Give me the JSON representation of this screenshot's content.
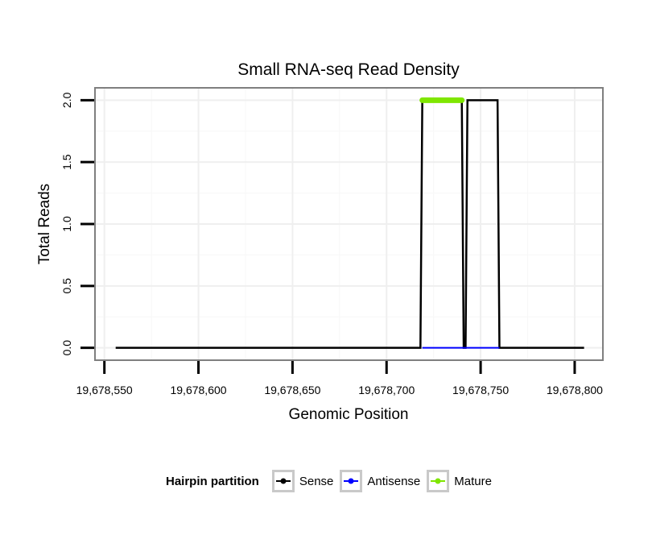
{
  "chart_data": {
    "type": "line",
    "title": "Small RNA-seq Read Density",
    "xlabel": "Genomic Position",
    "ylabel": "Total Reads",
    "xlim": [
      19678545,
      19678815
    ],
    "ylim": [
      -0.1,
      2.1
    ],
    "x_ticks": [
      19678550,
      19678600,
      19678650,
      19678700,
      19678750,
      19678800
    ],
    "x_tick_labels": [
      "19,678,550",
      "19,678,600",
      "19,678,650",
      "19,678,700",
      "19,678,750",
      "19,678,800"
    ],
    "y_ticks": [
      0,
      0.5,
      1,
      1.5,
      2
    ],
    "y_tick_labels": [
      "0.0",
      "0.5",
      "1.0",
      "1.5",
      "2.0"
    ],
    "grid": true,
    "legend_position": "bottom",
    "series": [
      {
        "name": "Sense",
        "color": "#000000",
        "x": [
          19678556,
          19678718,
          19678719,
          19678740,
          19678741,
          19678742,
          19678743,
          19678759,
          19678760,
          19678805
        ],
        "y": [
          0,
          0,
          2,
          2,
          0,
          0,
          2,
          2,
          0,
          0
        ]
      },
      {
        "name": "Antisense",
        "color": "#0000ff",
        "x": [
          19678719,
          19678760
        ],
        "y": [
          0,
          0
        ]
      },
      {
        "name": "Mature",
        "color": "#7fe600",
        "x": [
          19678719,
          19678740
        ],
        "y": [
          2,
          2
        ]
      }
    ]
  },
  "legend": {
    "title": "Hairpin partition",
    "items": [
      {
        "label": "Sense",
        "color": "#000000"
      },
      {
        "label": "Antisense",
        "color": "#0000ff"
      },
      {
        "label": "Mature",
        "color": "#7fe600"
      }
    ]
  }
}
